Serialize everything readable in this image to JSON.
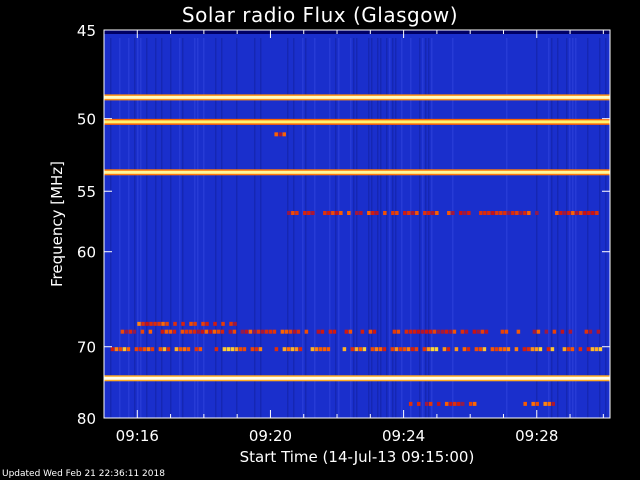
{
  "chart_data": {
    "type": "heatmap",
    "title": "Solar radio Flux (Glasgow)",
    "xlabel": "Start Time (14-Jul-13 09:15:00)",
    "ylabel": "Frequency [MHz]",
    "x_range_minutes": [
      0,
      15.2
    ],
    "x_ticks": [
      {
        "label": "09:16",
        "minute": 1
      },
      {
        "label": "09:20",
        "minute": 5
      },
      {
        "label": "09:24",
        "minute": 9
      },
      {
        "label": "09:28",
        "minute": 13
      }
    ],
    "y_range_mhz": [
      45,
      80
    ],
    "y_scale": "reciprocal",
    "y_ticks": [
      45,
      50,
      55,
      60,
      70,
      80
    ],
    "background_color": "#1a2fcc",
    "colormap": [
      "#000066",
      "#1a2fcc",
      "#cc1111",
      "#ff6600",
      "#ffee44",
      "#ffffee"
    ],
    "continuous_bands": [
      {
        "freq_mhz": 48.7,
        "intensity": 0.95
      },
      {
        "freq_mhz": 50.2,
        "intensity": 0.85
      },
      {
        "freq_mhz": 53.6,
        "intensity": 0.9
      },
      {
        "freq_mhz": 74.1,
        "intensity": 1.0
      }
    ],
    "bursts": [
      {
        "freq_mhz": 56.7,
        "t_start": 5.5,
        "t_end": 14.8,
        "intensity": 0.55
      },
      {
        "freq_mhz": 67.3,
        "t_start": 1.0,
        "t_end": 4.0,
        "intensity": 0.6
      },
      {
        "freq_mhz": 68.2,
        "t_start": 0.5,
        "t_end": 15.0,
        "intensity": 0.55
      },
      {
        "freq_mhz": 70.3,
        "t_start": 0.2,
        "t_end": 15.0,
        "intensity": 0.7
      },
      {
        "freq_mhz": 77.8,
        "t_start": 8.8,
        "t_end": 11.2,
        "intensity": 0.55
      },
      {
        "freq_mhz": 77.8,
        "t_start": 12.6,
        "t_end": 13.5,
        "intensity": 0.6
      },
      {
        "freq_mhz": 51.0,
        "t_start": 5.0,
        "t_end": 5.6,
        "intensity": 0.6
      }
    ]
  },
  "footer": "Updated Wed Feb 21 22:36:11 2018"
}
